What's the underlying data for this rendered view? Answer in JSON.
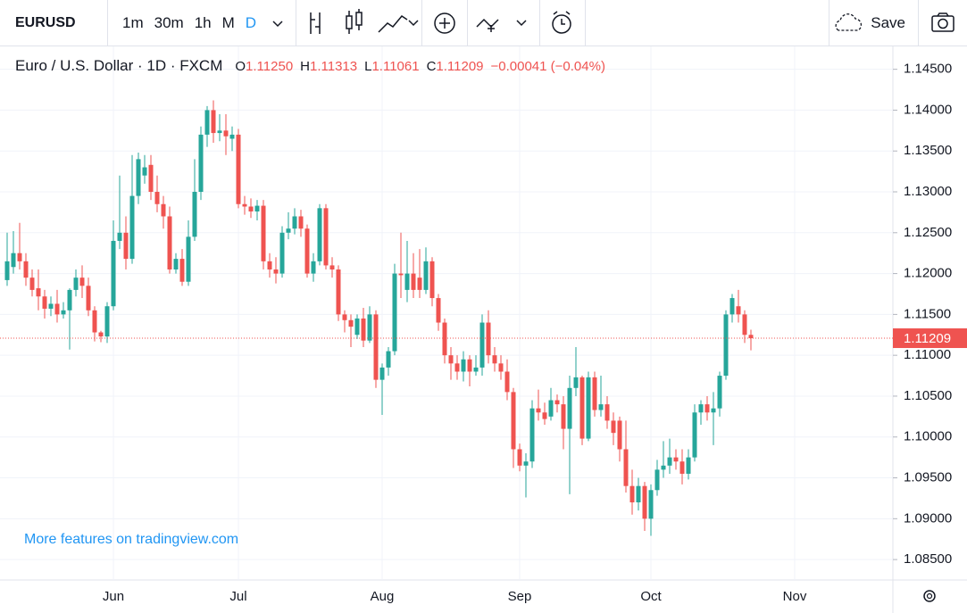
{
  "toolbar": {
    "symbol": "EURUSD",
    "intervals": [
      "1m",
      "30m",
      "1h",
      "M",
      "D"
    ],
    "save": "Save"
  },
  "chart_data": {
    "type": "candlestick",
    "title": "Euro / U.S. Dollar · 1D · FXCM",
    "legend_keys": [
      "O",
      "H",
      "L",
      "C"
    ],
    "legend_values": [
      "1.11250",
      "1.11313",
      "1.11061",
      "1.11209"
    ],
    "change": "−0.00041 (−0.04%)",
    "watermark": "More features on tradingview.com",
    "last_price_label": "1.11209",
    "up_color": "#26a69a",
    "down_color": "#ef5350",
    "grid": true,
    "ylim": [
      1.0825,
      1.1478
    ],
    "yticks": [
      {
        "value": 1.085,
        "label": "1.08500"
      },
      {
        "value": 1.09,
        "label": "1.09000"
      },
      {
        "value": 1.095,
        "label": "1.09500"
      },
      {
        "value": 1.1,
        "label": "1.10000"
      },
      {
        "value": 1.105,
        "label": "1.10500"
      },
      {
        "value": 1.11,
        "label": "1.11000"
      },
      {
        "value": 1.115,
        "label": "1.11500"
      },
      {
        "value": 1.12,
        "label": "1.12000"
      },
      {
        "value": 1.125,
        "label": "1.12500"
      },
      {
        "value": 1.13,
        "label": "1.13000"
      },
      {
        "value": 1.135,
        "label": "1.13500"
      },
      {
        "value": 1.14,
        "label": "1.14000"
      },
      {
        "value": 1.145,
        "label": "1.14500"
      }
    ],
    "categories": [
      null,
      null,
      null,
      null,
      null,
      null,
      null,
      null,
      null,
      null,
      null,
      null,
      null,
      null,
      null,
      null,
      null,
      "Jun",
      null,
      null,
      null,
      null,
      null,
      null,
      null,
      null,
      null,
      null,
      null,
      null,
      null,
      null,
      null,
      null,
      null,
      null,
      null,
      "Jul",
      null,
      null,
      null,
      null,
      null,
      null,
      null,
      null,
      null,
      null,
      null,
      null,
      null,
      null,
      null,
      null,
      null,
      null,
      null,
      null,
      null,
      null,
      "Aug",
      null,
      null,
      null,
      null,
      null,
      null,
      null,
      null,
      null,
      null,
      null,
      null,
      null,
      null,
      null,
      null,
      null,
      null,
      null,
      null,
      null,
      "Sep",
      null,
      null,
      null,
      null,
      null,
      null,
      null,
      null,
      null,
      null,
      null,
      null,
      null,
      null,
      null,
      null,
      null,
      null,
      null,
      null,
      "Oct",
      null,
      null,
      null,
      null,
      null,
      null,
      null,
      null,
      null,
      null,
      null,
      null,
      null,
      null,
      null,
      null,
      null,
      null,
      null,
      null,
      null,
      null,
      "Nov"
    ],
    "open": [
      1.1192,
      1.1208,
      1.1225,
      1.1215,
      1.1195,
      1.1182,
      1.1172,
      1.1157,
      1.1163,
      1.115,
      1.1155,
      1.118,
      1.1195,
      1.1185,
      1.1155,
      1.1128,
      1.1123,
      1.116,
      1.124,
      1.125,
      1.1218,
      1.1295,
      1.132,
      1.1333,
      1.13,
      1.1285,
      1.127,
      1.1205,
      1.1218,
      1.119,
      1.1245,
      1.13,
      1.137,
      1.14,
      1.1372,
      1.1375,
      1.1365,
      1.137,
      1.1285,
      1.1282,
      1.1276,
      1.1283,
      1.1215,
      1.1205,
      1.12,
      1.125,
      1.1255,
      1.127,
      1.1255,
      1.12,
      1.1215,
      1.128,
      1.121,
      1.1205,
      1.115,
      1.1143,
      1.1125,
      1.1145,
      1.1118,
      1.115,
      1.107,
      1.1085,
      1.1105,
      1.12,
      1.118,
      1.12,
      1.1195,
      1.118,
      1.1215,
      1.117,
      1.114,
      1.11,
      1.109,
      1.108,
      1.1095,
      1.108,
      1.1085,
      1.114,
      1.11,
      1.109,
      1.108,
      1.1055,
      1.0985,
      1.0965,
      1.097,
      1.1035,
      1.103,
      1.1025,
      1.1045,
      1.104,
      1.101,
      1.106,
      1.1073,
      1.0998,
      1.1073,
      1.1033,
      1.104,
      1.102,
      1.102,
      1.0985,
      1.094,
      1.092,
      1.094,
      1.09,
      1.0935,
      1.096,
      1.0965,
      1.0975,
      1.097,
      1.0955,
      1.0975,
      1.103,
      1.104,
      1.103,
      1.1035,
      1.1075,
      1.115,
      1.116,
      1.115,
      1.1125,
      null,
      null,
      null,
      null,
      null,
      null,
      null
    ],
    "high": [
      1.125,
      1.1252,
      1.1262,
      1.1225,
      1.1205,
      1.1205,
      1.118,
      1.1172,
      1.118,
      1.1165,
      1.1182,
      1.1205,
      1.121,
      1.1195,
      1.116,
      1.113,
      1.1165,
      1.1265,
      1.132,
      1.127,
      1.1345,
      1.1348,
      1.1345,
      1.1345,
      1.132,
      1.1295,
      1.1282,
      1.1225,
      1.123,
      1.1265,
      1.134,
      1.138,
      1.1405,
      1.1412,
      1.1395,
      1.1395,
      1.138,
      1.1377,
      1.1295,
      1.1292,
      1.129,
      1.129,
      1.1225,
      1.122,
      1.1258,
      1.1275,
      1.128,
      1.1278,
      1.126,
      1.1225,
      1.1285,
      1.1285,
      1.122,
      1.121,
      1.1155,
      1.115,
      1.115,
      1.1158,
      1.116,
      1.1155,
      1.109,
      1.111,
      1.1212,
      1.125,
      1.124,
      1.1225,
      1.123,
      1.1232,
      1.122,
      1.1175,
      1.1145,
      1.111,
      1.11,
      1.1105,
      1.11,
      1.11,
      1.115,
      1.1155,
      1.111,
      1.11,
      1.1095,
      1.106,
      1.0992,
      1.098,
      1.1045,
      1.1058,
      1.1042,
      1.106,
      1.1052,
      1.105,
      1.1075,
      1.111,
      1.1075,
      1.108,
      1.108,
      1.1075,
      1.105,
      1.103,
      1.1025,
      1.102,
      1.096,
      1.095,
      1.0945,
      1.0942,
      1.0972,
      1.0995,
      1.0998,
      1.0985,
      1.0985,
      1.0985,
      1.104,
      1.1045,
      1.105,
      1.1055,
      1.108,
      1.1155,
      1.1175,
      1.118,
      1.1155,
      1.11313,
      null,
      null,
      null,
      null,
      null,
      null,
      null
    ],
    "low": [
      1.1185,
      1.12,
      1.1205,
      1.1185,
      1.1172,
      1.1155,
      1.1145,
      1.1148,
      1.114,
      1.1145,
      1.1107,
      1.1172,
      1.117,
      1.1148,
      1.1117,
      1.1116,
      1.1115,
      1.1155,
      1.123,
      1.1205,
      1.1212,
      1.1285,
      1.131,
      1.129,
      1.1275,
      1.1255,
      1.12,
      1.12,
      1.1185,
      1.1185,
      1.124,
      1.129,
      1.1355,
      1.136,
      1.1362,
      1.1345,
      1.135,
      1.128,
      1.1272,
      1.1268,
      1.1265,
      1.1205,
      1.1195,
      1.1188,
      1.1195,
      1.1242,
      1.1248,
      1.1245,
      1.1195,
      1.119,
      1.121,
      1.1205,
      1.1195,
      1.1142,
      1.1128,
      1.111,
      1.112,
      1.111,
      1.1115,
      1.106,
      1.1027,
      1.1075,
      1.11,
      1.117,
      1.1165,
      1.117,
      1.117,
      1.1175,
      1.116,
      1.113,
      1.109,
      1.107,
      1.107,
      1.1068,
      1.1062,
      1.1075,
      1.1075,
      1.109,
      1.108,
      1.107,
      1.1045,
      1.0962,
      1.0958,
      1.0926,
      1.0962,
      1.102,
      1.1015,
      1.102,
      1.103,
      1.0985,
      1.093,
      1.105,
      1.099,
      1.0995,
      1.1025,
      1.1025,
      1.101,
      1.099,
      1.097,
      1.0932,
      1.0905,
      1.091,
      1.0885,
      1.0879,
      1.0928,
      1.095,
      1.0955,
      1.096,
      1.0942,
      1.0948,
      1.097,
      1.1015,
      1.102,
      1.099,
      1.1025,
      1.107,
      1.114,
      1.114,
      1.1115,
      1.11061,
      null,
      null,
      null,
      null,
      null,
      null,
      null
    ],
    "close": [
      1.1215,
      1.1225,
      1.1215,
      1.1195,
      1.118,
      1.1172,
      1.1157,
      1.1163,
      1.115,
      1.1155,
      1.118,
      1.1195,
      1.1185,
      1.1155,
      1.1128,
      1.1123,
      1.116,
      1.124,
      1.125,
      1.1218,
      1.1295,
      1.134,
      1.133,
      1.13,
      1.1285,
      1.127,
      1.1205,
      1.1218,
      1.119,
      1.1245,
      1.13,
      1.137,
      1.14,
      1.1372,
      1.1375,
      1.1368,
      1.137,
      1.1285,
      1.1282,
      1.1276,
      1.1283,
      1.1215,
      1.1205,
      1.12,
      1.125,
      1.1255,
      1.127,
      1.1255,
      1.12,
      1.1215,
      1.128,
      1.121,
      1.1205,
      1.115,
      1.1143,
      1.1135,
      1.1145,
      1.1118,
      1.115,
      1.107,
      1.1085,
      1.1105,
      1.12,
      1.1198,
      1.12,
      1.118,
      1.118,
      1.1215,
      1.117,
      1.114,
      1.11,
      1.109,
      1.108,
      1.1095,
      1.108,
      1.1085,
      1.114,
      1.11,
      1.109,
      1.108,
      1.1055,
      1.0985,
      1.0965,
      1.097,
      1.1035,
      1.103,
      1.1022,
      1.1045,
      1.104,
      1.101,
      1.106,
      1.1073,
      1.0998,
      1.1073,
      1.1033,
      1.104,
      1.102,
      1.1005,
      1.0985,
      1.094,
      1.092,
      1.094,
      1.09,
      1.0935,
      1.096,
      1.0965,
      1.0975,
      1.097,
      1.0955,
      1.0975,
      1.103,
      1.104,
      1.103,
      1.1035,
      1.1075,
      1.115,
      1.117,
      1.115,
      1.1125,
      1.11209,
      null,
      null,
      null,
      null,
      null,
      null,
      null
    ]
  }
}
